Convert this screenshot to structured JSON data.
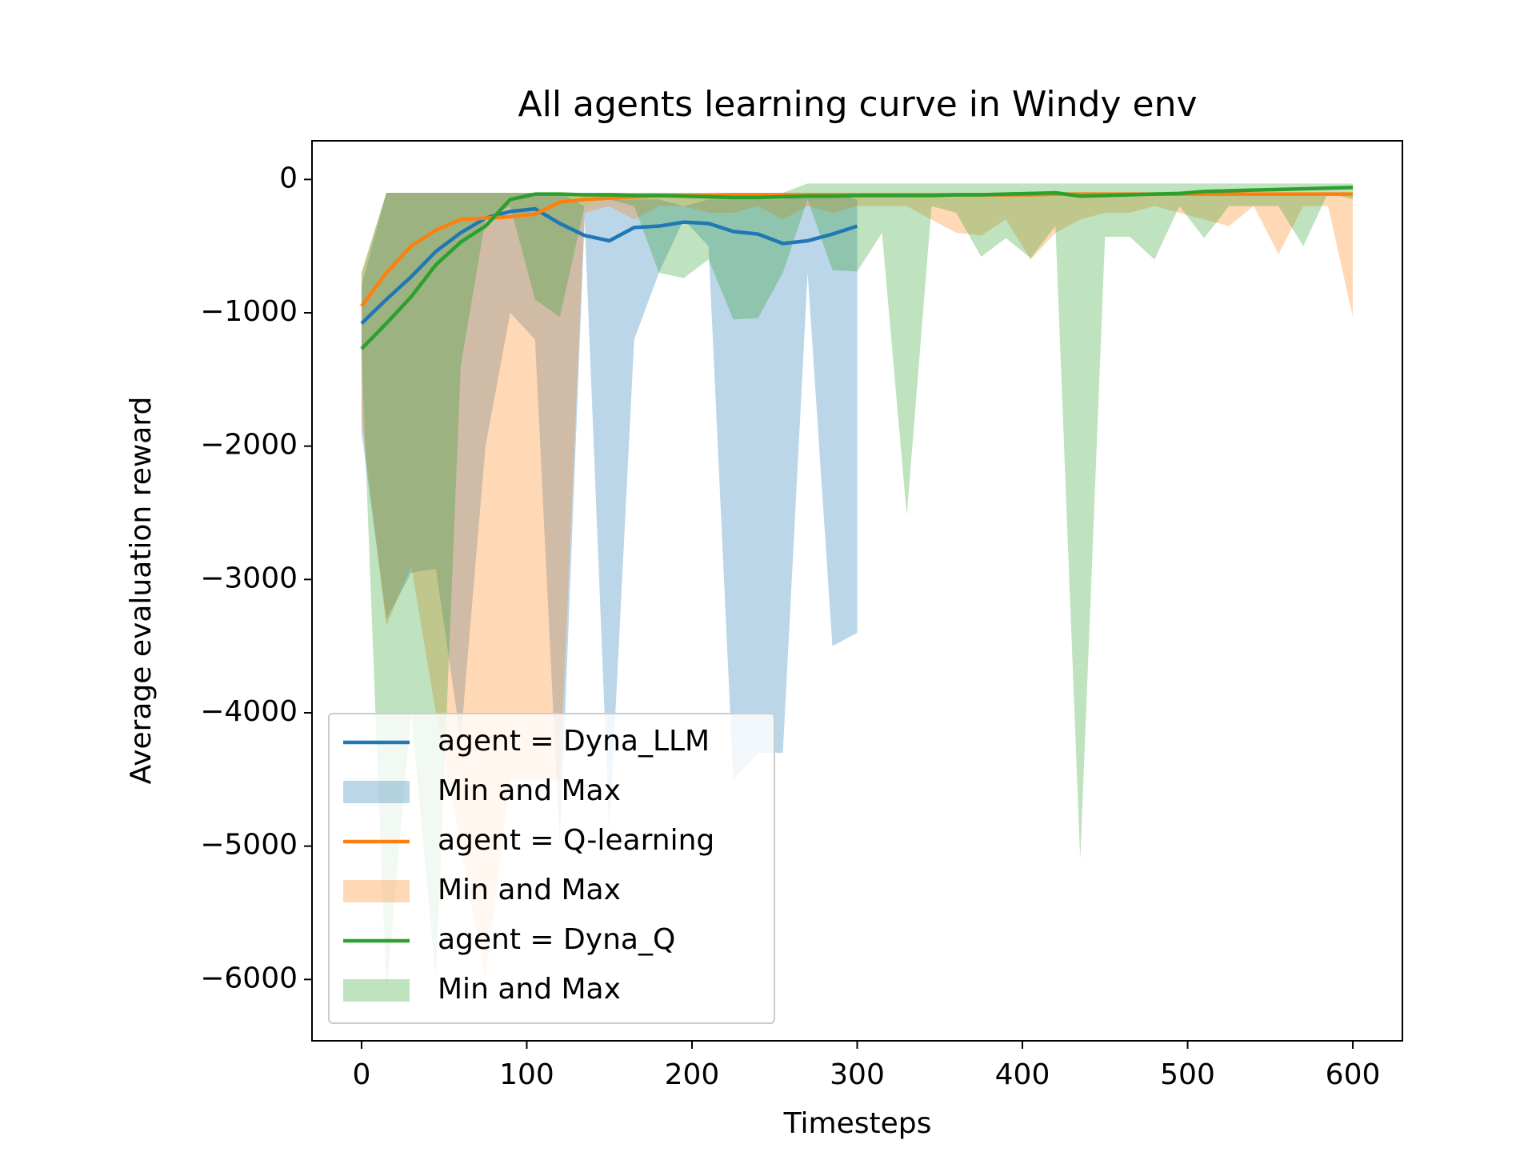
{
  "chart_data": {
    "type": "line",
    "title": "All agents learning curve in Windy env",
    "xlabel": "Timesteps",
    "ylabel": "Average evaluation reward",
    "xlim": [
      -30,
      630
    ],
    "ylim": [
      -6460,
      290
    ],
    "xticks": [
      0,
      100,
      200,
      300,
      400,
      500,
      600
    ],
    "yticks": [
      {
        "value": -6000,
        "label": "−6000"
      },
      {
        "value": -5000,
        "label": "−5000"
      },
      {
        "value": -4000,
        "label": "−4000"
      },
      {
        "value": -3000,
        "label": "−3000"
      },
      {
        "value": -2000,
        "label": "−2000"
      },
      {
        "value": -1000,
        "label": "−1000"
      },
      0
    ],
    "legend": "lower left",
    "series": [
      {
        "name": "agent = Dyna_LLM",
        "band_name": "Min and Max",
        "color": "#1f77b4",
        "x": [
          0,
          15,
          30,
          45,
          60,
          75,
          90,
          105,
          120,
          135,
          150,
          165,
          180,
          195,
          210,
          225,
          240,
          255,
          270,
          285,
          300
        ],
        "values": [
          -1080,
          -900,
          -730,
          -540,
          -400,
          -290,
          -240,
          -220,
          -330,
          -420,
          -460,
          -360,
          -350,
          -320,
          -330,
          -390,
          -410,
          -480,
          -460,
          -410,
          -350
        ],
        "min": [
          -1900,
          -3300,
          -2950,
          -2920,
          -4200,
          -2000,
          -1000,
          -1200,
          -5000,
          -300,
          -4900,
          -1200,
          -700,
          -300,
          -500,
          -4500,
          -4300,
          -4300,
          -700,
          -3500,
          -3400
        ],
        "max": [
          -800,
          -100,
          -100,
          -100,
          -100,
          -100,
          -100,
          -100,
          -100,
          -200,
          -150,
          -150,
          -150,
          -200,
          -150,
          -150,
          -150,
          -150,
          -100,
          -100,
          -150
        ]
      },
      {
        "name": "agent = Q-learning",
        "band_name": "Min and Max",
        "color": "#ff7f0e",
        "x": [
          0,
          15,
          30,
          45,
          60,
          75,
          90,
          105,
          120,
          135,
          150,
          165,
          180,
          195,
          210,
          225,
          240,
          255,
          270,
          285,
          300,
          315,
          330,
          345,
          360,
          375,
          390,
          405,
          420,
          435,
          450,
          465,
          480,
          495,
          510,
          525,
          540,
          555,
          570,
          585,
          600
        ],
        "values": [
          -950,
          -700,
          -500,
          -380,
          -300,
          -290,
          -280,
          -260,
          -170,
          -150,
          -140,
          -130,
          -120,
          -120,
          -120,
          -115,
          -115,
          -115,
          -115,
          -115,
          -115,
          -115,
          -115,
          -115,
          -115,
          -115,
          -115,
          -115,
          -110,
          -110,
          -110,
          -110,
          -110,
          -110,
          -110,
          -110,
          -110,
          -110,
          -110,
          -110,
          -110
        ],
        "min": [
          -1800,
          -3350,
          -2900,
          -4000,
          -5000,
          -6000,
          -4500,
          -4500,
          -4500,
          -250,
          -200,
          -300,
          -200,
          -200,
          -250,
          -250,
          -200,
          -300,
          -200,
          -250,
          -200,
          -200,
          -200,
          -300,
          -400,
          -420,
          -300,
          -600,
          -400,
          -300,
          -250,
          -250,
          -200,
          -250,
          -300,
          -350,
          -200,
          -560,
          -200,
          -200,
          -1030
        ],
        "max": [
          -700,
          -100,
          -100,
          -100,
          -100,
          -100,
          -100,
          -100,
          -100,
          -100,
          -100,
          -100,
          -100,
          -100,
          -100,
          -100,
          -100,
          -100,
          -100,
          -100,
          -100,
          -100,
          -100,
          -100,
          -100,
          -100,
          -100,
          -100,
          -100,
          -100,
          -100,
          -100,
          -100,
          -100,
          -100,
          -100,
          -100,
          -100,
          -100,
          -100,
          -100
        ]
      },
      {
        "name": "agent = Dyna_Q",
        "band_name": "Min and Max",
        "color": "#2ca02c",
        "x": [
          0,
          15,
          30,
          45,
          60,
          75,
          90,
          105,
          120,
          135,
          150,
          165,
          180,
          195,
          210,
          225,
          240,
          255,
          270,
          285,
          300,
          315,
          330,
          345,
          360,
          375,
          390,
          405,
          420,
          435,
          450,
          465,
          480,
          495,
          510,
          525,
          540,
          555,
          570,
          585,
          600
        ],
        "values": [
          -1270,
          -1080,
          -880,
          -640,
          -470,
          -350,
          -150,
          -110,
          -110,
          -115,
          -115,
          -120,
          -120,
          -125,
          -130,
          -135,
          -135,
          -130,
          -125,
          -125,
          -120,
          -120,
          -120,
          -120,
          -115,
          -115,
          -110,
          -105,
          -100,
          -125,
          -120,
          -115,
          -110,
          -105,
          -90,
          -85,
          -80,
          -75,
          -70,
          -65,
          -60
        ],
        "min": [
          -1300,
          -6100,
          -4000,
          -6000,
          -1400,
          -300,
          -200,
          -900,
          -1030,
          -200,
          -150,
          -200,
          -700,
          -740,
          -600,
          -1050,
          -1040,
          -700,
          -150,
          -680,
          -690,
          -400,
          -2520,
          -200,
          -250,
          -580,
          -440,
          -590,
          -350,
          -5100,
          -430,
          -430,
          -600,
          -200,
          -440,
          -200,
          -200,
          -200,
          -500,
          -100,
          -150
        ],
        "max": [
          -700,
          -100,
          -100,
          -100,
          -100,
          -100,
          -100,
          -100,
          -100,
          -100,
          -100,
          -100,
          -100,
          -100,
          -100,
          -100,
          -100,
          -100,
          -30,
          -30,
          -30,
          -30,
          -30,
          -30,
          -30,
          -30,
          -30,
          -30,
          -30,
          -30,
          -30,
          -30,
          -30,
          -30,
          -30,
          -30,
          -30,
          -30,
          -30,
          -30,
          -30
        ]
      }
    ]
  }
}
